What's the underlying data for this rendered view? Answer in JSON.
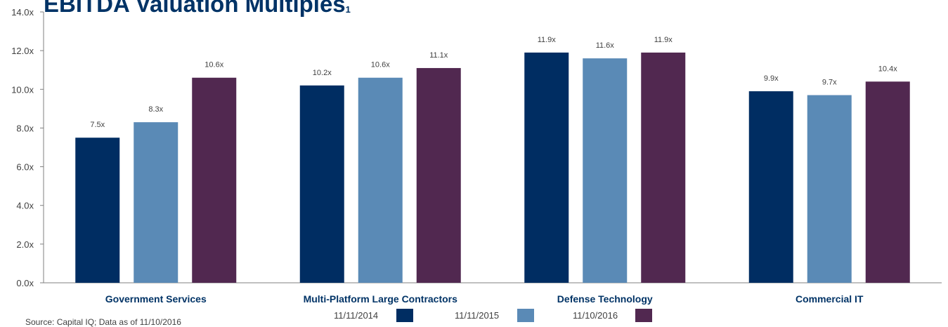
{
  "chart_data": {
    "type": "bar",
    "title": "EBITDA Valuation Multiples",
    "title_footnote": "1",
    "categories": [
      "Government Services",
      "Multi-Platform Large Contractors",
      "Defense Technology",
      "Commercial IT"
    ],
    "series": [
      {
        "name": "11/11/2014",
        "color": "#002D62",
        "values": [
          7.5,
          10.2,
          11.9,
          9.9
        ],
        "labels": [
          "7.5x",
          "10.2x",
          "11.9x",
          "9.9x"
        ]
      },
      {
        "name": "11/11/2015",
        "color": "#5A8AB6",
        "values": [
          8.3,
          10.6,
          11.6,
          9.7
        ],
        "labels": [
          "8.3x",
          "10.6x",
          "11.6x",
          "9.7x"
        ]
      },
      {
        "name": "11/10/2016",
        "color": "#512850",
        "values": [
          10.6,
          11.1,
          11.9,
          10.4
        ],
        "labels": [
          "10.6x",
          "11.1x",
          "11.9x",
          "10.4x"
        ]
      }
    ],
    "ylim": [
      0,
      14
    ],
    "y_ticks": [
      "0.0x",
      "2.0x",
      "4.0x",
      "6.0x",
      "8.0x",
      "10.0x",
      "12.0x",
      "14.0x"
    ],
    "xlabel": "",
    "ylabel": "",
    "grid": false,
    "legend_position": "bottom-center"
  },
  "source_note": "Source: Capital IQ; Data as of 11/10/2016"
}
